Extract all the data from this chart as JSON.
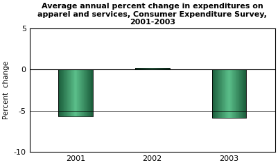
{
  "categories": [
    "2001",
    "2002",
    "2003"
  ],
  "values": [
    -5.7,
    0.2,
    -5.85
  ],
  "bar_color_light": "#5bbf8a",
  "bar_color_dark": "#1a5c3a",
  "title": "Average annual percent change in expenditures on\napparel and services, Consumer Expenditure Survey,\n2001-2003",
  "ylabel": "Percent  change",
  "ylim": [
    -10,
    5
  ],
  "yticks": [
    -10,
    -5,
    0,
    5
  ],
  "title_fontsize": 8,
  "label_fontsize": 7.5,
  "tick_fontsize": 8,
  "background_color": "#ffffff",
  "bar_width": 0.45
}
